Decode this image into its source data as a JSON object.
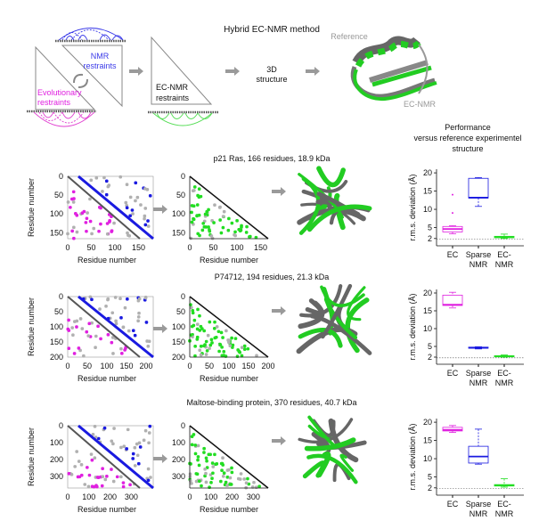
{
  "header": {
    "title": "Hybrid EC-NMR method",
    "nmr_label": [
      "NMR",
      "restraints"
    ],
    "evo_label": [
      "Evolutionary",
      "restraints"
    ],
    "ecnmr_label": [
      "EC-NMR",
      "restraints"
    ],
    "structure_label": [
      "3D",
      "structure"
    ],
    "reference_label": "Reference",
    "ecnmr_model_label": "EC-NMR",
    "performance_label": [
      "Performance",
      "versus reference experimentel",
      "structure"
    ]
  },
  "colors": {
    "evolutionary": "#e020e0",
    "nmr": "#1a1ae0",
    "ecnmr": "#22dd22",
    "reference": "#777777",
    "arrow": "#9a9a9a"
  },
  "rows": [
    {
      "title": "p21 Ras, 166 residues, 18.9 kDa",
      "ticks": [
        "0",
        "50",
        "100",
        "150"
      ],
      "axis_max": 166,
      "axis_label": "Residue number"
    },
    {
      "title": "P74712, 194 residues, 21.3 kDa",
      "ticks": [
        "0",
        "50",
        "100",
        "150",
        "200"
      ],
      "axis_max": 200,
      "axis_label": "Residue number"
    },
    {
      "title": "Maltose-binding protein, 370 residues, 40.7 kDa",
      "ticks": [
        "0",
        "100",
        "200",
        "300"
      ],
      "axis_max": 370,
      "axis_label": "Residue number"
    }
  ],
  "chart_data": [
    {
      "type": "box",
      "ylabel": "r.m.s. deviation (Å)",
      "yticks": [
        2,
        5,
        10,
        15,
        20
      ],
      "ylim": [
        0,
        21
      ],
      "reference_line": 1.8,
      "categories": [
        "EC",
        "Sparse NMR",
        "EC-NMR"
      ],
      "boxes": [
        {
          "min": 3.3,
          "q1": 3.8,
          "median": 4.6,
          "q3": 5.3,
          "max": 5.5,
          "outliers": [
            9,
            14
          ]
        },
        {
          "min": 10.8,
          "q1": 13.1,
          "median": 13.2,
          "q3": 18.5,
          "max": 18.7,
          "outliers": []
        },
        {
          "min": 2.0,
          "q1": 2.2,
          "median": 2.4,
          "q3": 2.6,
          "max": 3.2,
          "outliers": []
        }
      ]
    },
    {
      "type": "box",
      "ylabel": "r.m.s. deviation (Å)",
      "yticks": [
        2,
        5,
        10,
        15,
        20
      ],
      "ylim": [
        0,
        21
      ],
      "reference_line": 1.8,
      "categories": [
        "EC",
        "Sparse NMR",
        "EC-NMR"
      ],
      "boxes": [
        {
          "min": 15.8,
          "q1": 16.5,
          "median": 16.7,
          "q3": 19.4,
          "max": 20.2,
          "outliers": []
        },
        {
          "min": 4.3,
          "q1": 4.5,
          "median": 4.6,
          "q3": 4.8,
          "max": 4.9,
          "outliers": []
        },
        {
          "min": 2.0,
          "q1": 2.1,
          "median": 2.2,
          "q3": 2.4,
          "max": 2.6,
          "outliers": []
        }
      ]
    },
    {
      "type": "box",
      "ylabel": "r.m.s. deviation (Å)",
      "yticks": [
        2,
        5,
        10,
        15,
        20
      ],
      "ylim": [
        0,
        21
      ],
      "reference_line": 1.8,
      "categories": [
        "EC",
        "Sparse NMR",
        "EC-NMR"
      ],
      "boxes": [
        {
          "min": 17.2,
          "q1": 17.6,
          "median": 17.9,
          "q3": 18.6,
          "max": 19.1,
          "outliers": []
        },
        {
          "min": 8.5,
          "q1": 8.8,
          "median": 10.6,
          "q3": 13.4,
          "max": 18.1,
          "outliers": []
        },
        {
          "min": 2.2,
          "q1": 2.5,
          "median": 2.7,
          "q3": 2.9,
          "max": 4.5,
          "outliers": []
        }
      ]
    }
  ],
  "category_labels": [
    [
      "EC"
    ],
    [
      "Sparse",
      "NMR"
    ],
    [
      "EC-",
      "NMR"
    ]
  ]
}
